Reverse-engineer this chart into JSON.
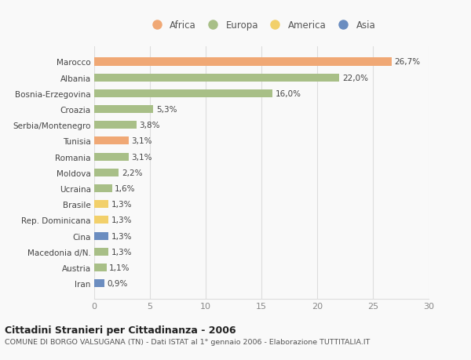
{
  "countries": [
    "Marocco",
    "Albania",
    "Bosnia-Erzegovina",
    "Croazia",
    "Serbia/Montenegro",
    "Tunisia",
    "Romania",
    "Moldova",
    "Ucraina",
    "Brasile",
    "Rep. Dominicana",
    "Cina",
    "Macedonia d/N.",
    "Austria",
    "Iran"
  ],
  "values": [
    26.7,
    22.0,
    16.0,
    5.3,
    3.8,
    3.1,
    3.1,
    2.2,
    1.6,
    1.3,
    1.3,
    1.3,
    1.3,
    1.1,
    0.9
  ],
  "labels": [
    "26,7%",
    "22,0%",
    "16,0%",
    "5,3%",
    "3,8%",
    "3,1%",
    "3,1%",
    "2,2%",
    "1,6%",
    "1,3%",
    "1,3%",
    "1,3%",
    "1,3%",
    "1,1%",
    "0,9%"
  ],
  "continents": [
    "Africa",
    "Europa",
    "Europa",
    "Europa",
    "Europa",
    "Africa",
    "Europa",
    "Europa",
    "Europa",
    "America",
    "America",
    "Asia",
    "Europa",
    "Europa",
    "Asia"
  ],
  "continent_colors": {
    "Africa": "#F0A875",
    "Europa": "#A8BF87",
    "America": "#F2D06B",
    "Asia": "#6B8DC0"
  },
  "legend_order": [
    "Africa",
    "Europa",
    "America",
    "Asia"
  ],
  "title": "Cittadini Stranieri per Cittadinanza - 2006",
  "subtitle": "COMUNE DI BORGO VALSUGANA (TN) - Dati ISTAT al 1° gennaio 2006 - Elaborazione TUTTITALIA.IT",
  "xlim": [
    0,
    30
  ],
  "xticks": [
    0,
    5,
    10,
    15,
    20,
    25,
    30
  ],
  "background_color": "#f9f9f9",
  "grid_color": "#dddddd",
  "bar_height": 0.5
}
